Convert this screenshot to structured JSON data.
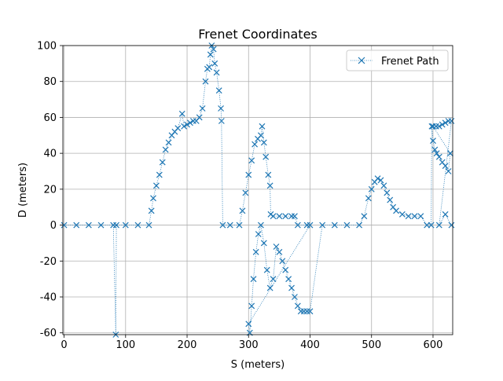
{
  "chart_data": {
    "type": "line",
    "title": "Frenet Coordinates",
    "xlabel": "S (meters)",
    "ylabel": "D (meters)",
    "xlim": [
      -2,
      632
    ],
    "ylim": [
      -61,
      100
    ],
    "x_ticks": [
      0,
      100,
      200,
      300,
      400,
      500,
      600
    ],
    "y_ticks": [
      -60,
      -40,
      -20,
      0,
      20,
      40,
      60,
      80,
      100
    ],
    "grid": true,
    "legend_position": "top-right",
    "marker": "x",
    "line_style": "dotted",
    "color": "#1f77b4",
    "series": [
      {
        "name": "Frenet Path",
        "points": [
          [
            0,
            0
          ],
          [
            20,
            0
          ],
          [
            40,
            0
          ],
          [
            60,
            0
          ],
          [
            80,
            0
          ],
          [
            84,
            -61
          ],
          [
            85,
            0
          ],
          [
            100,
            0
          ],
          [
            120,
            0
          ],
          [
            138,
            0
          ],
          [
            142,
            8
          ],
          [
            145,
            15
          ],
          [
            150,
            22
          ],
          [
            155,
            28
          ],
          [
            160,
            35
          ],
          [
            165,
            42
          ],
          [
            170,
            46
          ],
          [
            175,
            50
          ],
          [
            180,
            52
          ],
          [
            185,
            54
          ],
          [
            192,
            62
          ],
          [
            195,
            55
          ],
          [
            200,
            56
          ],
          [
            205,
            57
          ],
          [
            210,
            58
          ],
          [
            215,
            58
          ],
          [
            220,
            60
          ],
          [
            225,
            65
          ],
          [
            230,
            80
          ],
          [
            233,
            87
          ],
          [
            236,
            88
          ],
          [
            238,
            95
          ],
          [
            240,
            100
          ],
          [
            243,
            98
          ],
          [
            245,
            90
          ],
          [
            248,
            85
          ],
          [
            252,
            75
          ],
          [
            255,
            65
          ],
          [
            256,
            58
          ],
          [
            258,
            0
          ],
          [
            270,
            0
          ],
          [
            285,
            0
          ],
          [
            290,
            8
          ],
          [
            295,
            18
          ],
          [
            300,
            28
          ],
          [
            305,
            36
          ],
          [
            310,
            45
          ],
          [
            315,
            48
          ],
          [
            320,
            50
          ],
          [
            322,
            55
          ],
          [
            325,
            46
          ],
          [
            328,
            38
          ],
          [
            332,
            28
          ],
          [
            335,
            22
          ],
          [
            336,
            6
          ],
          [
            340,
            5
          ],
          [
            350,
            5
          ],
          [
            360,
            5
          ],
          [
            370,
            5
          ],
          [
            375,
            5
          ],
          [
            380,
            0
          ],
          [
            395,
            0
          ],
          [
            400,
            0
          ],
          [
            300,
            -55
          ],
          [
            302,
            -60
          ],
          [
            305,
            -45
          ],
          [
            308,
            -30
          ],
          [
            312,
            -15
          ],
          [
            316,
            -5
          ],
          [
            320,
            0
          ],
          [
            325,
            -10
          ],
          [
            330,
            -25
          ],
          [
            335,
            -35
          ],
          [
            340,
            -30
          ],
          [
            345,
            -12
          ],
          [
            350,
            -15
          ],
          [
            355,
            -20
          ],
          [
            360,
            -25
          ],
          [
            365,
            -30
          ],
          [
            370,
            -35
          ],
          [
            375,
            -40
          ],
          [
            380,
            -45
          ],
          [
            385,
            -48
          ],
          [
            390,
            -48
          ],
          [
            395,
            -48
          ],
          [
            400,
            -48
          ],
          [
            420,
            0
          ],
          [
            440,
            0
          ],
          [
            460,
            0
          ],
          [
            480,
            0
          ],
          [
            488,
            5
          ],
          [
            495,
            15
          ],
          [
            500,
            20
          ],
          [
            505,
            24
          ],
          [
            510,
            26
          ],
          [
            515,
            25
          ],
          [
            520,
            22
          ],
          [
            525,
            18
          ],
          [
            530,
            14
          ],
          [
            535,
            10
          ],
          [
            540,
            8
          ],
          [
            550,
            6
          ],
          [
            560,
            5
          ],
          [
            570,
            5
          ],
          [
            580,
            5
          ],
          [
            590,
            0
          ],
          [
            597,
            0
          ],
          [
            598,
            55
          ],
          [
            600,
            47
          ],
          [
            603,
            42
          ],
          [
            606,
            40
          ],
          [
            610,
            38
          ],
          [
            615,
            35
          ],
          [
            620,
            33
          ],
          [
            625,
            30
          ],
          [
            628,
            40
          ],
          [
            600,
            55
          ],
          [
            605,
            55
          ],
          [
            610,
            55
          ],
          [
            615,
            56
          ],
          [
            620,
            57
          ],
          [
            625,
            58
          ],
          [
            630,
            58
          ],
          [
            610,
            0
          ],
          [
            620,
            6
          ],
          [
            630,
            0
          ]
        ]
      }
    ]
  }
}
